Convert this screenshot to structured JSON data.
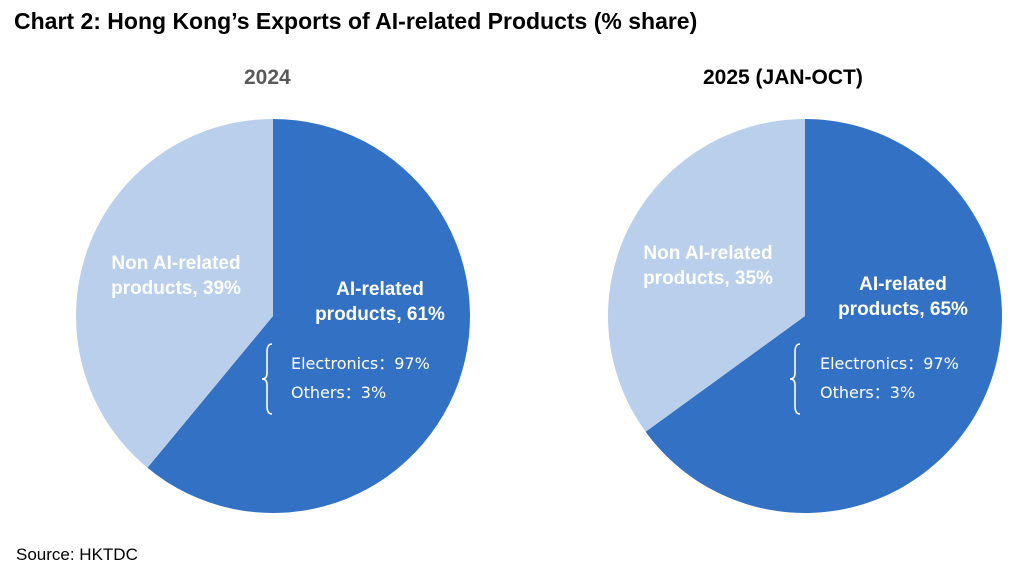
{
  "title": "Chart 2: Hong Kong’s Exports of AI-related Products (% share)",
  "source": "Source: HKTDC",
  "colors": {
    "ai": "#3371c4",
    "non_ai": "#b9cfeb",
    "label": "#ffffff"
  },
  "chart_data": [
    {
      "type": "pie",
      "title": "2024",
      "slices": [
        {
          "name": "AI-related products",
          "value": 61,
          "label_lines": [
            "AI-related",
            "products, 61%"
          ]
        },
        {
          "name": "Non AI-related products",
          "value": 39,
          "label_lines": [
            "Non AI-related",
            "products, 39%"
          ]
        }
      ],
      "breakdown": [
        {
          "text": "Electronics：97%"
        },
        {
          "text": "Others：3%"
        }
      ]
    },
    {
      "type": "pie",
      "title": "2025 (JAN-OCT)",
      "slices": [
        {
          "name": "AI-related products",
          "value": 65,
          "label_lines": [
            "AI-related",
            "products, 65%"
          ]
        },
        {
          "name": "Non AI-related products",
          "value": 35,
          "label_lines": [
            "Non AI-related",
            "products, 35%"
          ]
        }
      ],
      "breakdown": [
        {
          "text": "Electronics：97%"
        },
        {
          "text": "Others：3%"
        }
      ]
    }
  ]
}
